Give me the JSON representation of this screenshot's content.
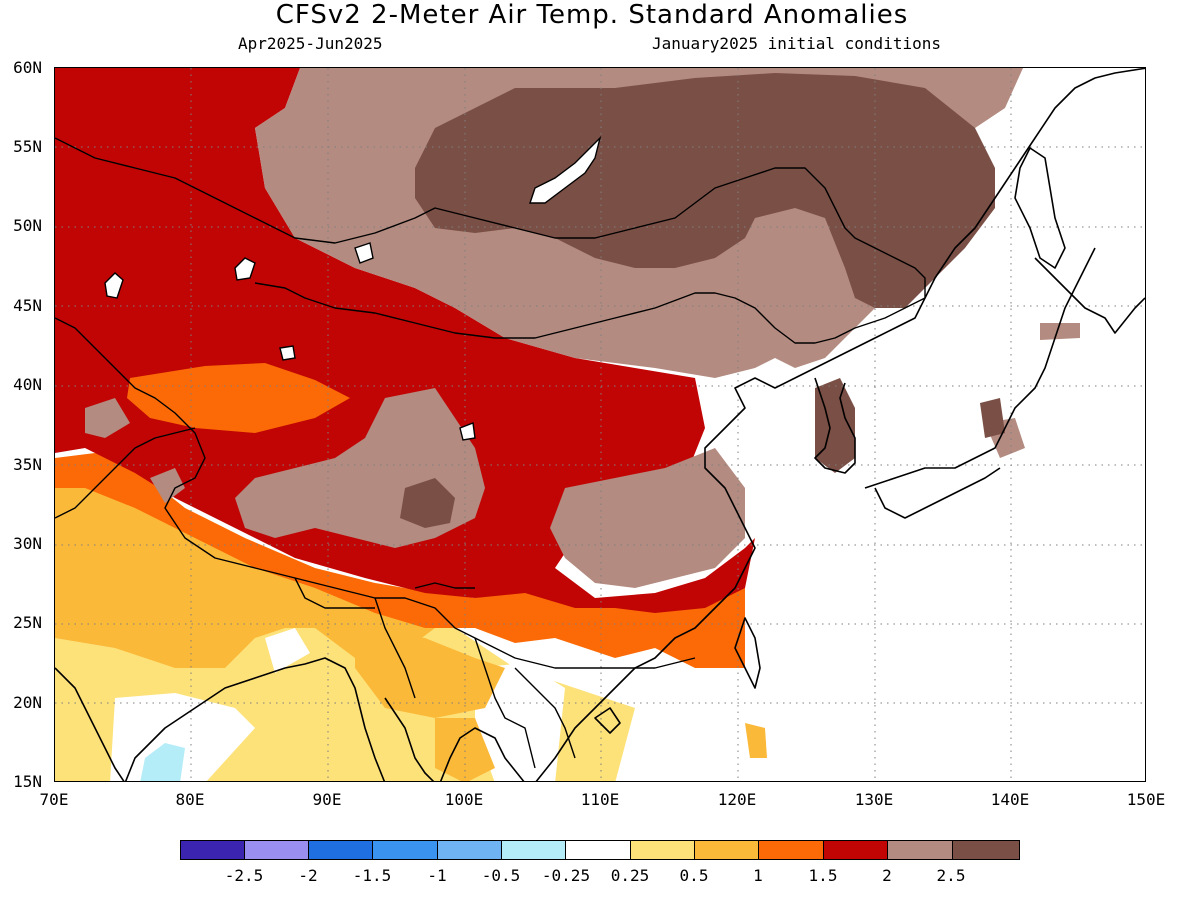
{
  "header": {
    "title": "CFSv2 2-Meter Air Temp. Standard Anomalies",
    "period": "Apr2025-Jun2025",
    "init": "January2025 initial conditions"
  },
  "axes": {
    "lat_labels": [
      "60N",
      "55N",
      "50N",
      "45N",
      "40N",
      "35N",
      "30N",
      "25N",
      "20N",
      "15N"
    ],
    "lon_labels": [
      "70E",
      "80E",
      "90E",
      "100E",
      "110E",
      "120E",
      "130E",
      "140E",
      "150E"
    ],
    "lat_range": [
      15,
      60
    ],
    "lon_range": [
      70,
      150
    ],
    "grid": "dotted"
  },
  "colorbar": {
    "colors": [
      "#3a24b0",
      "#9a8ef0",
      "#1f6fe0",
      "#3b93f0",
      "#6fb3f3",
      "#b4ecf8",
      "#ffffff",
      "#fde27a",
      "#fbb93a",
      "#fb6a06",
      "#c10505",
      "#b38b80",
      "#7a4f45"
    ],
    "labels": [
      "-2.5",
      "-2",
      "-1.5",
      "-1",
      "-0.5",
      "-0.25",
      "0.25",
      "0.5",
      "1",
      "1.5",
      "2",
      "2.5"
    ]
  }
}
